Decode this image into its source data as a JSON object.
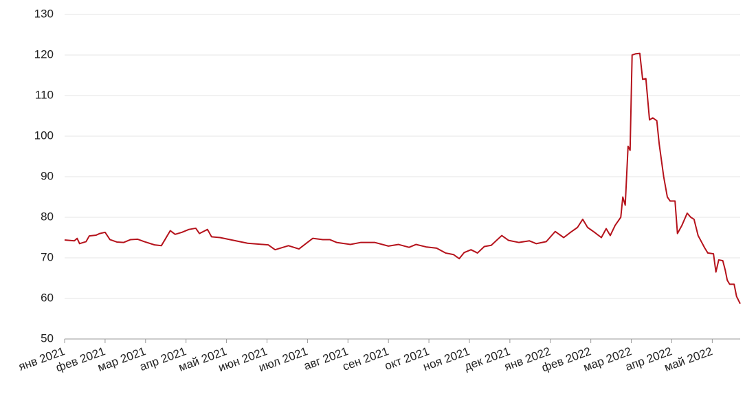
{
  "chart_data": {
    "type": "line",
    "x": [
      0,
      0.24,
      0.31,
      0.37,
      0.53,
      0.61,
      0.78,
      0.87,
      1.0,
      1.12,
      1.29,
      1.46,
      1.63,
      1.8,
      1.97,
      2.22,
      2.39,
      2.48,
      2.61,
      2.73,
      2.9,
      3.07,
      3.24,
      3.33,
      3.53,
      3.63,
      3.84,
      4.18,
      4.52,
      5.03,
      5.2,
      5.53,
      5.79,
      5.96,
      6.13,
      6.38,
      6.55,
      6.72,
      7.06,
      7.32,
      7.66,
      8.0,
      8.25,
      8.51,
      8.68,
      8.93,
      9.19,
      9.41,
      9.61,
      9.75,
      9.87,
      10.04,
      10.2,
      10.37,
      10.54,
      10.8,
      10.97,
      11.22,
      11.48,
      11.65,
      11.9,
      12.12,
      12.33,
      12.5,
      12.67,
      12.8,
      12.92,
      13.09,
      13.26,
      13.38,
      13.48,
      13.6,
      13.74,
      13.79,
      13.85,
      13.92,
      13.97,
      14.02,
      14.11,
      14.21,
      14.28,
      14.36,
      14.45,
      14.53,
      14.63,
      14.69,
      14.8,
      14.89,
      14.96,
      15.08,
      15.14,
      15.25,
      15.38,
      15.47,
      15.55,
      15.65,
      15.81,
      15.89,
      16.03,
      16.09,
      16.16,
      16.26,
      16.32,
      16.37,
      16.43,
      16.54,
      16.6,
      16.69
    ],
    "series": [
      {
        "color": "#b5121b",
        "values": [
          74.4,
          74.2,
          74.8,
          73.5,
          74.0,
          75.4,
          75.6,
          76.0,
          76.3,
          74.5,
          73.9,
          73.8,
          74.5,
          74.6,
          74.0,
          73.2,
          73.0,
          74.5,
          76.7,
          75.8,
          76.3,
          77.0,
          77.3,
          76.0,
          77.0,
          75.2,
          75.0,
          74.3,
          73.6,
          73.2,
          72.0,
          73.0,
          72.2,
          73.5,
          74.8,
          74.5,
          74.5,
          73.8,
          73.3,
          73.8,
          73.8,
          72.9,
          73.3,
          72.6,
          73.3,
          72.7,
          72.4,
          71.2,
          70.8,
          69.8,
          71.3,
          72.0,
          71.2,
          72.8,
          73.1,
          75.5,
          74.3,
          73.8,
          74.2,
          73.5,
          74.0,
          76.5,
          75.0,
          76.3,
          77.5,
          79.5,
          77.5,
          76.3,
          75.0,
          77.2,
          75.5,
          78.0,
          80.0,
          85.0,
          83.0,
          97.5,
          96.5,
          120.0,
          120.3,
          120.4,
          114.0,
          114.2,
          104.0,
          104.5,
          103.8,
          98.0,
          90.0,
          85.0,
          84.0,
          84.0,
          76.0,
          78.0,
          81.0,
          80.0,
          79.5,
          75.5,
          72.5,
          71.2,
          71.0,
          66.5,
          69.5,
          69.3,
          67.0,
          64.5,
          63.5,
          63.5,
          60.5,
          58.7
        ]
      }
    ],
    "xlim": [
      0,
      16.69
    ],
    "xticks": [
      {
        "value": 0,
        "label": "янв 2021"
      },
      {
        "value": 1,
        "label": "фев 2021"
      },
      {
        "value": 2,
        "label": "мар 2021"
      },
      {
        "value": 3,
        "label": "апр 2021"
      },
      {
        "value": 4,
        "label": "май 2021"
      },
      {
        "value": 5,
        "label": "июн 2021"
      },
      {
        "value": 6,
        "label": "июл 2021"
      },
      {
        "value": 7,
        "label": "авг 2021"
      },
      {
        "value": 8,
        "label": "сен 2021"
      },
      {
        "value": 9,
        "label": "окт 2021"
      },
      {
        "value": 10,
        "label": "ноя 2021"
      },
      {
        "value": 11,
        "label": "дек 2021"
      },
      {
        "value": 12,
        "label": "янв 2022"
      },
      {
        "value": 13,
        "label": "фев 2022"
      },
      {
        "value": 14,
        "label": "мар 2022"
      },
      {
        "value": 15,
        "label": "апр 2022"
      },
      {
        "value": 16,
        "label": "май 2022"
      }
    ],
    "ylim": [
      50,
      130
    ],
    "yticks": [
      50,
      60,
      70,
      80,
      90,
      100,
      110,
      120,
      130
    ],
    "grid": true
  }
}
